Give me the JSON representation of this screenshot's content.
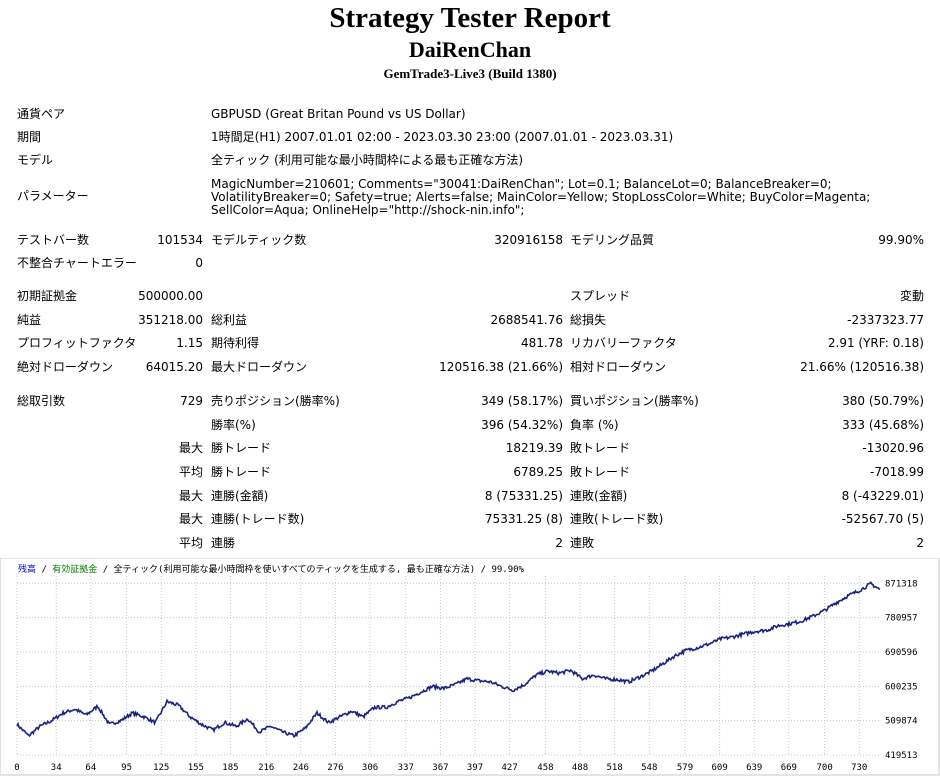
{
  "report": {
    "title": "Strategy Tester Report",
    "name": "DaiRenChan",
    "server": "GemTrade3-Live3 (Build 1380)"
  },
  "info": {
    "symbol_label": "通貨ペア",
    "symbol_value": "GBPUSD (Great Britan Pound vs US Dollar)",
    "period_label": "期間",
    "period_value": "1時間足(H1) 2007.01.01 02:00 - 2023.03.30 23:00 (2007.01.01 - 2023.03.31)",
    "model_label": "モデル",
    "model_value": "全ティック (利用可能な最小時間枠による最も正確な方法)",
    "params_label": "パラメーター",
    "params_value": "MagicNumber=210601; Comments=\"30041:DaiRenChan\"; Lot=0.1; BalanceLot=0; BalanceBreaker=0; VolatilityBreaker=0; Safety=true; Alerts=false; MainColor=Yellow; StopLossColor=White; BuyColor=Magenta; SellColor=Aqua; OnlineHelp=\"http://shock-nin.info\";"
  },
  "stats": {
    "bars_label": "テストバー数",
    "bars_value": "101534",
    "ticks_label": "モデルティック数",
    "ticks_value": "320916158",
    "quality_label": "モデリング品質",
    "quality_value": "99.90%",
    "mismatch_label": "不整合チャートエラー",
    "mismatch_value": "0",
    "deposit_label": "初期証拠金",
    "deposit_value": "500000.00",
    "spread_label": "スプレッド",
    "spread_value": "変動",
    "net_label": "純益",
    "net_value": "351218.00",
    "gross_profit_label": "総利益",
    "gross_profit_value": "2688541.76",
    "gross_loss_label": "総損失",
    "gross_loss_value": "-2337323.77",
    "pf_label": "プロフィットファクタ",
    "pf_value": "1.15",
    "expected_label": "期待利得",
    "expected_value": "481.78",
    "recovery_label": "リカバリーファクタ",
    "recovery_value": "2.91 (YRF: 0.18)",
    "abs_dd_label": "絶対ドローダウン",
    "abs_dd_value": "64015.20",
    "max_dd_label": "最大ドローダウン",
    "max_dd_value": "120516.38 (21.66%)",
    "rel_dd_label": "相対ドローダウン",
    "rel_dd_value": "21.66% (120516.38)",
    "total_label": "総取引数",
    "total_value": "729",
    "short_label": "売りポジション(勝率%)",
    "short_value": "349 (58.17%)",
    "long_label": "買いポジション(勝率%)",
    "long_value": "380 (50.79%)",
    "win_label": "勝率(%)",
    "win_value": "396 (54.32%)",
    "loss_label": "負率 (%)",
    "loss_value": "333 (45.68%)",
    "max_word": "最大",
    "avg_word": "平均",
    "win_trade_label": "勝トレード",
    "lose_trade_label": "敗トレード",
    "largest_win_value": "18219.39",
    "largest_loss_value": "-13020.96",
    "avg_win_value": "6789.25",
    "avg_loss_value": "-7018.99",
    "consec_win_money_label": "連勝(金額)",
    "consec_win_money_value": "8 (75331.25)",
    "consec_loss_money_label": "連敗(金額)",
    "consec_loss_money_value": "8 (-43229.01)",
    "consec_win_count_label": "連勝(トレード数)",
    "consec_win_count_value": "75331.25 (8)",
    "consec_loss_count_label": "連敗(トレード数)",
    "consec_loss_count_value": "-52567.70 (5)",
    "avg_consec_win_label": "連勝",
    "avg_consec_win_value": "2",
    "avg_consec_loss_label": "連敗",
    "avg_consec_loss_value": "2"
  },
  "chart_data": {
    "type": "line",
    "header": {
      "balance_label": "残高",
      "sep": "/",
      "lots_label": "有効証拠金",
      "desc": "全ティック(利用可能な最小時間枠を使いすべてのティックを生成する, 最も正確な方法)",
      "sep2": "/",
      "quality": "99.90%"
    },
    "colors": {
      "line": "#1a237e",
      "balance_label": "#0000cc",
      "lots_label": "#008000",
      "grid": "#c8c8c8"
    },
    "xlim": [
      0,
      748
    ],
    "ylim": [
      419513,
      880000
    ],
    "x_ticks": [
      0,
      34,
      64,
      95,
      125,
      155,
      185,
      216,
      246,
      276,
      306,
      337,
      367,
      397,
      427,
      458,
      488,
      518,
      548,
      579,
      609,
      639,
      669,
      700,
      730
    ],
    "y_ticks": [
      "871318",
      "780957",
      "690596",
      "600235",
      "509874",
      "419513"
    ],
    "y_tick_values": [
      871318,
      780957,
      690596,
      600235,
      509874,
      419513
    ],
    "anchors": {
      "x": [
        0,
        10,
        20,
        30,
        40,
        50,
        60,
        70,
        80,
        90,
        100,
        110,
        120,
        130,
        140,
        150,
        160,
        170,
        180,
        190,
        200,
        210,
        220,
        230,
        240,
        250,
        260,
        270,
        280,
        290,
        300,
        310,
        320,
        330,
        340,
        350,
        360,
        370,
        380,
        390,
        400,
        410,
        420,
        430,
        440,
        450,
        460,
        470,
        480,
        490,
        500,
        510,
        520,
        530,
        540,
        550,
        560,
        570,
        580,
        590,
        600,
        610,
        620,
        630,
        640,
        650,
        660,
        670,
        680,
        690,
        700,
        710,
        720,
        730,
        740,
        748
      ],
      "y": [
        500000,
        470000,
        495000,
        510000,
        530000,
        540000,
        525000,
        548000,
        500000,
        510000,
        530000,
        520000,
        505000,
        560000,
        550000,
        520000,
        500000,
        485000,
        505000,
        495000,
        515000,
        480000,
        495000,
        480000,
        470000,
        490000,
        530000,
        505000,
        520000,
        535000,
        520000,
        545000,
        545000,
        560000,
        570000,
        585000,
        600000,
        595000,
        605000,
        620000,
        615000,
        612000,
        600000,
        590000,
        605000,
        630000,
        640000,
        635000,
        642000,
        620000,
        630000,
        620000,
        618000,
        612000,
        625000,
        640000,
        660000,
        680000,
        695000,
        702000,
        712000,
        725000,
        730000,
        738000,
        745000,
        748000,
        760000,
        765000,
        772000,
        785000,
        800000,
        820000,
        838000,
        852000,
        870000,
        855000
      ]
    }
  }
}
